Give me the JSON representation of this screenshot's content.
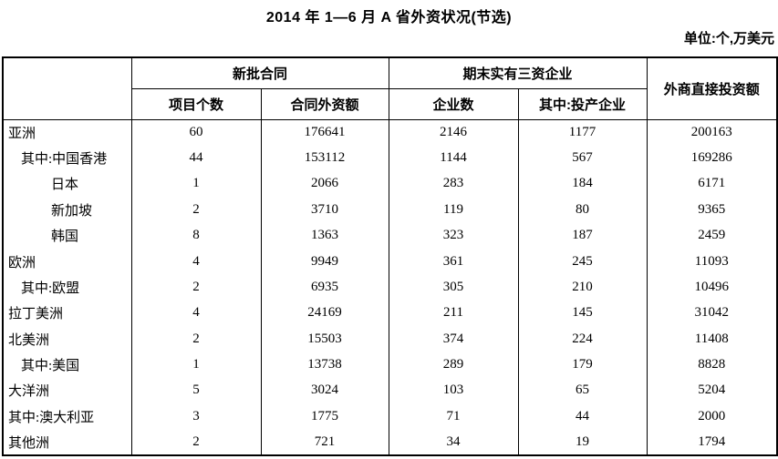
{
  "title": "2014 年 1—6 月 A 省外资状况(节选)",
  "unit_note": "单位:个,万美元",
  "table": {
    "header": {
      "group_new_contracts": "新批合同",
      "group_existing_enterprises": "期末实有三资企业",
      "col_fdi": "外商直接投资额",
      "sub_project_count": "项目个数",
      "sub_contract_amount": "合同外资额",
      "sub_enterprise_count": "企业数",
      "sub_in_production": "其中:投产企业"
    },
    "rows": [
      {
        "label": "亚洲",
        "indent": 0,
        "values": [
          60,
          176641,
          2146,
          1177,
          200163
        ]
      },
      {
        "label": "其中:中国香港",
        "indent": 1,
        "values": [
          44,
          153112,
          1144,
          567,
          169286
        ]
      },
      {
        "label": "日本",
        "indent": 2,
        "values": [
          1,
          2066,
          283,
          184,
          6171
        ]
      },
      {
        "label": "新加坡",
        "indent": 2,
        "values": [
          2,
          3710,
          119,
          80,
          9365
        ]
      },
      {
        "label": "韩国",
        "indent": 2,
        "values": [
          8,
          1363,
          323,
          187,
          2459
        ]
      },
      {
        "label": "欧洲",
        "indent": 0,
        "values": [
          4,
          9949,
          361,
          245,
          11093
        ]
      },
      {
        "label": "其中:欧盟",
        "indent": 1,
        "values": [
          2,
          6935,
          305,
          210,
          10496
        ]
      },
      {
        "label": "拉丁美洲",
        "indent": 0,
        "values": [
          4,
          24169,
          211,
          145,
          31042
        ]
      },
      {
        "label": "北美洲",
        "indent": 0,
        "values": [
          2,
          15503,
          374,
          224,
          11408
        ]
      },
      {
        "label": "其中:美国",
        "indent": 1,
        "values": [
          1,
          13738,
          289,
          179,
          8828
        ]
      },
      {
        "label": "大洋洲",
        "indent": 0,
        "values": [
          5,
          3024,
          103,
          65,
          5204
        ]
      },
      {
        "label": "其中:澳大利亚",
        "indent": 0,
        "values": [
          3,
          1775,
          71,
          44,
          2000
        ]
      },
      {
        "label": "其他洲",
        "indent": 0,
        "values": [
          2,
          721,
          34,
          19,
          1794
        ]
      }
    ]
  }
}
